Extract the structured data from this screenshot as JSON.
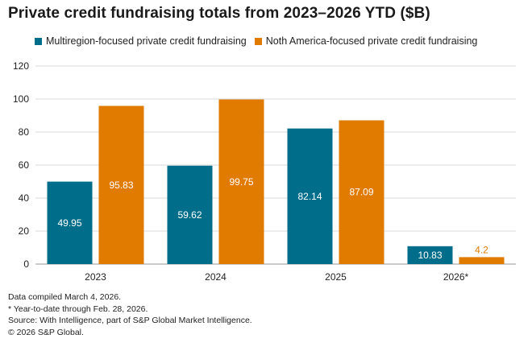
{
  "chart_data": {
    "type": "bar",
    "title": "Private credit fundraising totals from 2023–2026 YTD ($B)",
    "categories": [
      "2023",
      "2024",
      "2025",
      "2026*"
    ],
    "series": [
      {
        "name": "Multiregion-focused private credit fundraising",
        "color": "#006e8a",
        "values": [
          49.95,
          59.62,
          82.14,
          10.83
        ],
        "labels": [
          "49.95",
          "59.62",
          "82.14",
          "10.83"
        ]
      },
      {
        "name": "Noth America-focused private credit fundraising",
        "color": "#e07b00",
        "values": [
          95.83,
          99.75,
          87.09,
          4.2
        ],
        "labels": [
          "95.83",
          "99.75",
          "87.09",
          "4.2"
        ]
      }
    ],
    "ylim": [
      0,
      120
    ],
    "yticks": [
      0,
      20,
      40,
      60,
      80,
      100,
      120
    ],
    "xlabel": "",
    "ylabel": "",
    "grid": true,
    "legend": "top-left"
  },
  "notes": [
    "Data compiled March 4, 2026.",
    "* Year-to-date through Feb. 28, 2026.",
    "Source: With Intelligence, part of S&P Global Market Intelligence.",
    "© 2026 S&P Global."
  ]
}
